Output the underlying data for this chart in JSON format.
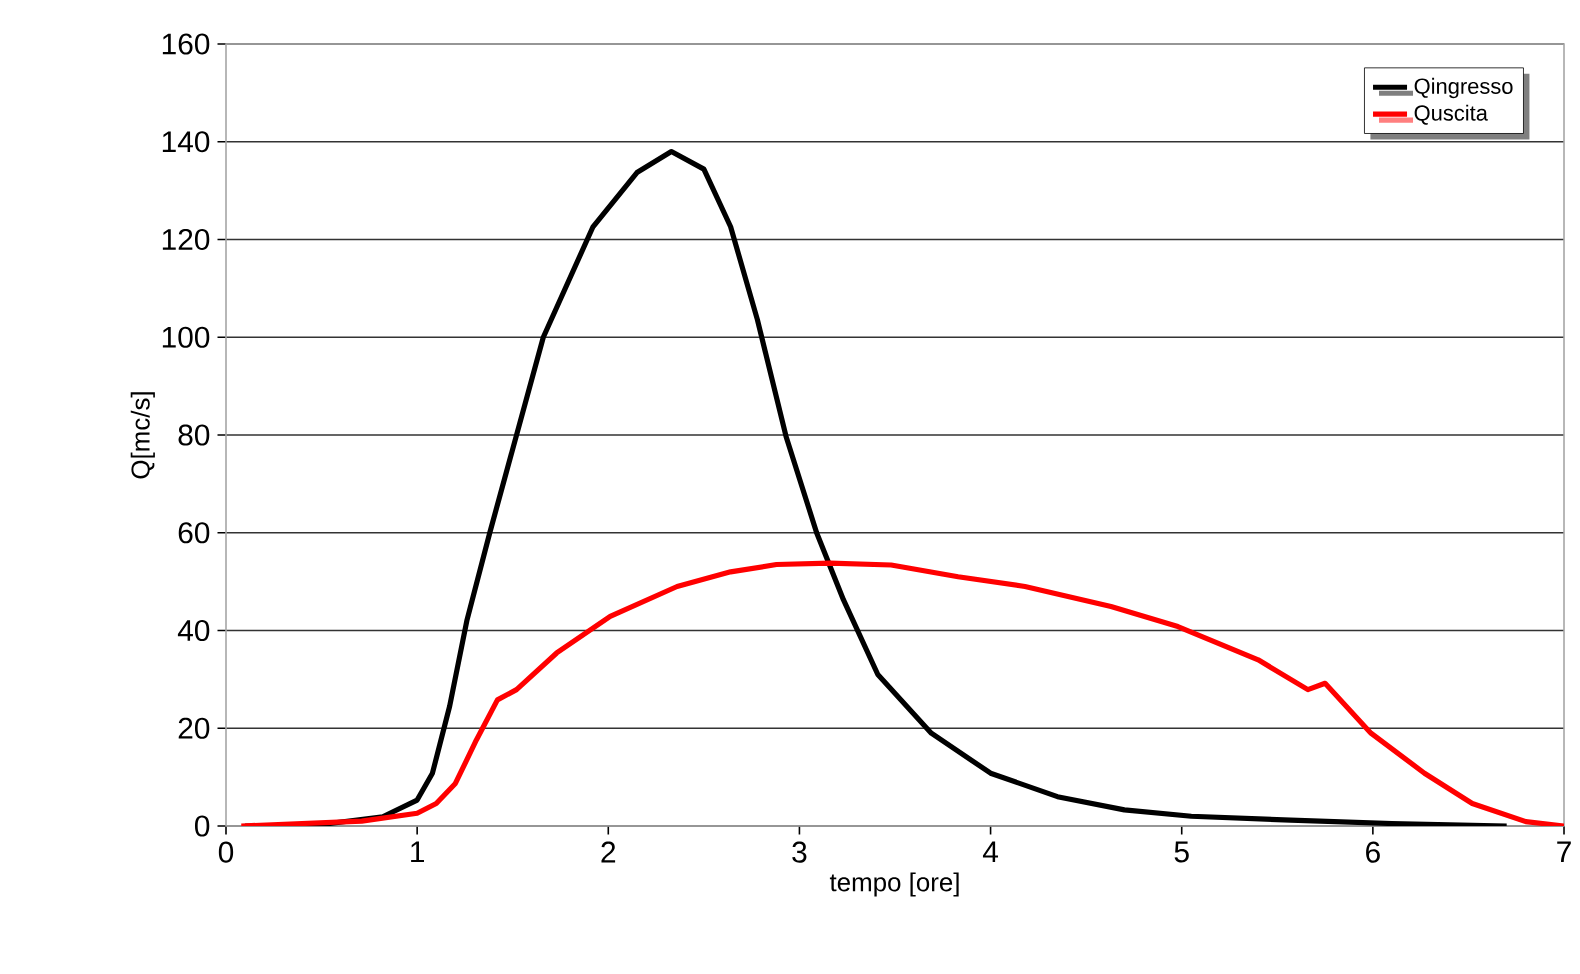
{
  "chart_data": {
    "type": "line",
    "xlabel": "tempo [ore]",
    "ylabel": "Q[mc/s]",
    "xlim": [
      0,
      7
    ],
    "xticks": [
      0,
      1,
      2,
      3,
      4,
      5,
      6,
      7
    ],
    "ylim": [
      0,
      160
    ],
    "yticks": [
      0,
      20,
      40,
      60,
      80,
      100,
      120,
      140,
      160
    ],
    "grid": "y",
    "legend": "top right",
    "marker": "none",
    "line_style": "solid",
    "series": [
      {
        "name": "Qingresso",
        "color": "#000000",
        "x": [
          0.1,
          0.5,
          0.54,
          0.82,
          1.0,
          1.08,
          1.17,
          1.26,
          1.38,
          1.52,
          1.66,
          1.92,
          2.15,
          2.33,
          2.5,
          2.64,
          2.78,
          2.93,
          3.09,
          3.23,
          3.41,
          3.69,
          4.0,
          4.35,
          4.7,
          5.05,
          5.57,
          6.1,
          6.7
        ],
        "values": [
          0,
          0,
          0.5,
          1.9,
          5.3,
          10.8,
          24.5,
          42,
          60,
          80,
          100,
          122.6,
          133.7,
          138,
          134.4,
          122.6,
          103.6,
          79.7,
          60,
          46.3,
          31,
          19,
          10.8,
          6,
          3.3,
          2,
          1.2,
          0.5,
          0
        ]
      },
      {
        "name": "Quscita",
        "color": "#ff0000",
        "x": [
          0.08,
          0.71,
          1.0,
          1.1,
          1.2,
          1.31,
          1.42,
          1.52,
          1.73,
          2.01,
          2.36,
          2.64,
          2.88,
          3.16,
          3.48,
          3.83,
          4.18,
          4.63,
          4.98,
          5.4,
          5.66,
          5.75,
          5.99,
          6.27,
          6.52,
          6.8,
          7.0
        ],
        "values": [
          0,
          1,
          2.6,
          4.6,
          8.7,
          17.6,
          25.8,
          27.9,
          35.4,
          42.9,
          49,
          52,
          53.5,
          53.8,
          53.4,
          51,
          49,
          44.9,
          40.8,
          34,
          27.9,
          29.2,
          19,
          10.8,
          4.6,
          0.9,
          0
        ]
      }
    ]
  }
}
